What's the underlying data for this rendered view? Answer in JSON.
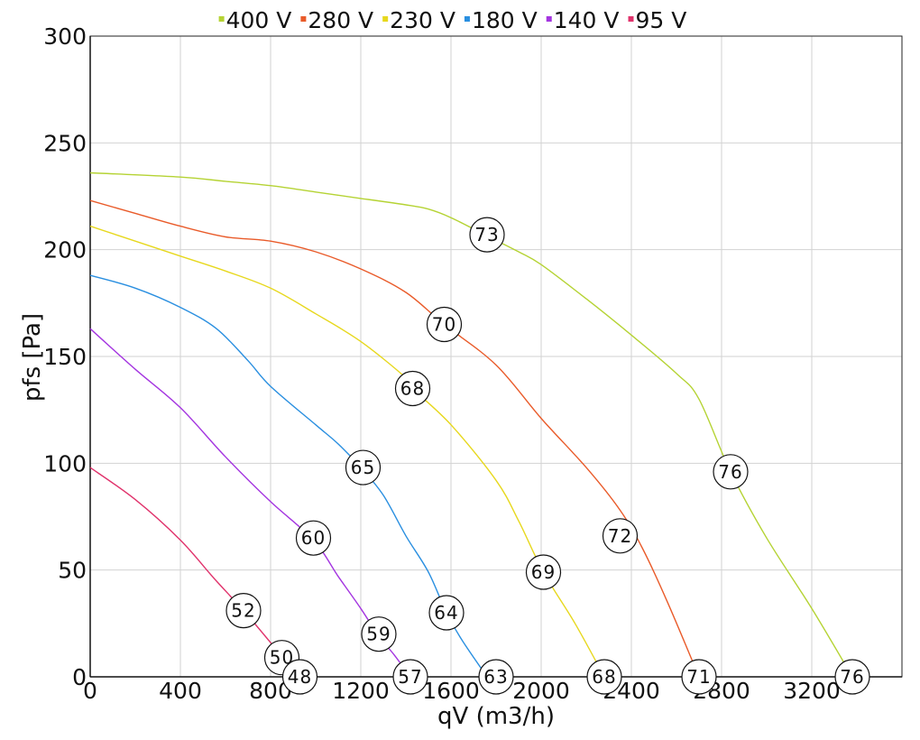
{
  "chart_data": {
    "type": "line",
    "xlabel": "qV (m3/h)",
    "ylabel": "pfs [Pa]",
    "xlim": [
      0,
      3600
    ],
    "ylim": [
      0,
      300
    ],
    "x_ticks": [
      0,
      400,
      800,
      1200,
      1600,
      2000,
      2400,
      2800,
      3200
    ],
    "x_tick_labels": [
      "0",
      "400",
      "800",
      "1200",
      "1600",
      "2000",
      "2400",
      "2800",
      "3200"
    ],
    "y_ticks": [
      0,
      50,
      100,
      150,
      200,
      250,
      300
    ],
    "y_tick_labels": [
      "0",
      "50",
      "100",
      "150",
      "200",
      "250",
      "300"
    ],
    "grid": true,
    "legend_position": "top",
    "series": [
      {
        "name": "400 V",
        "color": "#b5d334",
        "points": [
          [
            0,
            236
          ],
          [
            400,
            234
          ],
          [
            600,
            232
          ],
          [
            800,
            230
          ],
          [
            1000,
            227
          ],
          [
            1200,
            224
          ],
          [
            1400,
            221
          ],
          [
            1500,
            219
          ],
          [
            1600,
            215
          ],
          [
            1750,
            207
          ],
          [
            1900,
            199
          ],
          [
            2000,
            193
          ],
          [
            2200,
            177
          ],
          [
            2400,
            160
          ],
          [
            2600,
            142
          ],
          [
            2700,
            130
          ],
          [
            2840,
            96
          ],
          [
            3000,
            65
          ],
          [
            3200,
            32
          ],
          [
            3380,
            0
          ]
        ]
      },
      {
        "name": "280 V",
        "color": "#e95b2a",
        "points": [
          [
            0,
            223
          ],
          [
            200,
            217
          ],
          [
            400,
            211
          ],
          [
            600,
            206
          ],
          [
            800,
            204
          ],
          [
            1000,
            199
          ],
          [
            1200,
            191
          ],
          [
            1400,
            180
          ],
          [
            1570,
            165
          ],
          [
            1800,
            146
          ],
          [
            2000,
            121
          ],
          [
            2200,
            98
          ],
          [
            2350,
            78
          ],
          [
            2450,
            60
          ],
          [
            2560,
            35
          ],
          [
            2700,
            0
          ]
        ]
      },
      {
        "name": "230 V",
        "color": "#e7d81e",
        "points": [
          [
            0,
            211
          ],
          [
            200,
            204
          ],
          [
            400,
            197
          ],
          [
            600,
            190
          ],
          [
            800,
            182
          ],
          [
            1000,
            170
          ],
          [
            1200,
            157
          ],
          [
            1400,
            140
          ],
          [
            1430,
            135
          ],
          [
            1600,
            118
          ],
          [
            1800,
            92
          ],
          [
            1900,
            73
          ],
          [
            2010,
            49
          ],
          [
            2150,
            25
          ],
          [
            2280,
            0
          ]
        ]
      },
      {
        "name": "180 V",
        "color": "#2a8fe0",
        "points": [
          [
            0,
            188
          ],
          [
            200,
            182
          ],
          [
            400,
            173
          ],
          [
            560,
            163
          ],
          [
            700,
            148
          ],
          [
            800,
            136
          ],
          [
            1000,
            118
          ],
          [
            1100,
            109
          ],
          [
            1200,
            98
          ],
          [
            1300,
            85
          ],
          [
            1400,
            66
          ],
          [
            1500,
            49
          ],
          [
            1580,
            30
          ],
          [
            1650,
            17
          ],
          [
            1760,
            0
          ]
        ]
      },
      {
        "name": "140 V",
        "color": "#a435e0",
        "points": [
          [
            0,
            163
          ],
          [
            200,
            144
          ],
          [
            400,
            126
          ],
          [
            600,
            103
          ],
          [
            800,
            82
          ],
          [
            990,
            64
          ],
          [
            1100,
            47
          ],
          [
            1200,
            32
          ],
          [
            1280,
            19
          ],
          [
            1350,
            10
          ],
          [
            1420,
            0
          ]
        ]
      },
      {
        "name": "95 V",
        "color": "#e0336c",
        "points": [
          [
            0,
            98
          ],
          [
            200,
            83
          ],
          [
            400,
            64
          ],
          [
            550,
            46
          ],
          [
            680,
            31
          ],
          [
            800,
            16
          ],
          [
            850,
            9
          ],
          [
            930,
            0
          ]
        ]
      }
    ],
    "point_labels": [
      {
        "x": 1760,
        "y": 207,
        "text": "73"
      },
      {
        "x": 2840,
        "y": 96,
        "text": "76"
      },
      {
        "x": 3380,
        "y": 0,
        "text": "76"
      },
      {
        "x": 1570,
        "y": 165,
        "text": "70"
      },
      {
        "x": 2350,
        "y": 66,
        "text": "72"
      },
      {
        "x": 2700,
        "y": 0,
        "text": "71"
      },
      {
        "x": 1430,
        "y": 135,
        "text": "68"
      },
      {
        "x": 2010,
        "y": 49,
        "text": "69"
      },
      {
        "x": 2280,
        "y": 0,
        "text": "68"
      },
      {
        "x": 1210,
        "y": 98,
        "text": "65"
      },
      {
        "x": 1580,
        "y": 30,
        "text": "64"
      },
      {
        "x": 1800,
        "y": 0,
        "text": "63"
      },
      {
        "x": 990,
        "y": 65,
        "text": "60"
      },
      {
        "x": 1280,
        "y": 20,
        "text": "59"
      },
      {
        "x": 1420,
        "y": 0,
        "text": "57"
      },
      {
        "x": 680,
        "y": 31,
        "text": "52"
      },
      {
        "x": 850,
        "y": 9,
        "text": "50"
      },
      {
        "x": 930,
        "y": 0,
        "text": "48"
      }
    ]
  }
}
